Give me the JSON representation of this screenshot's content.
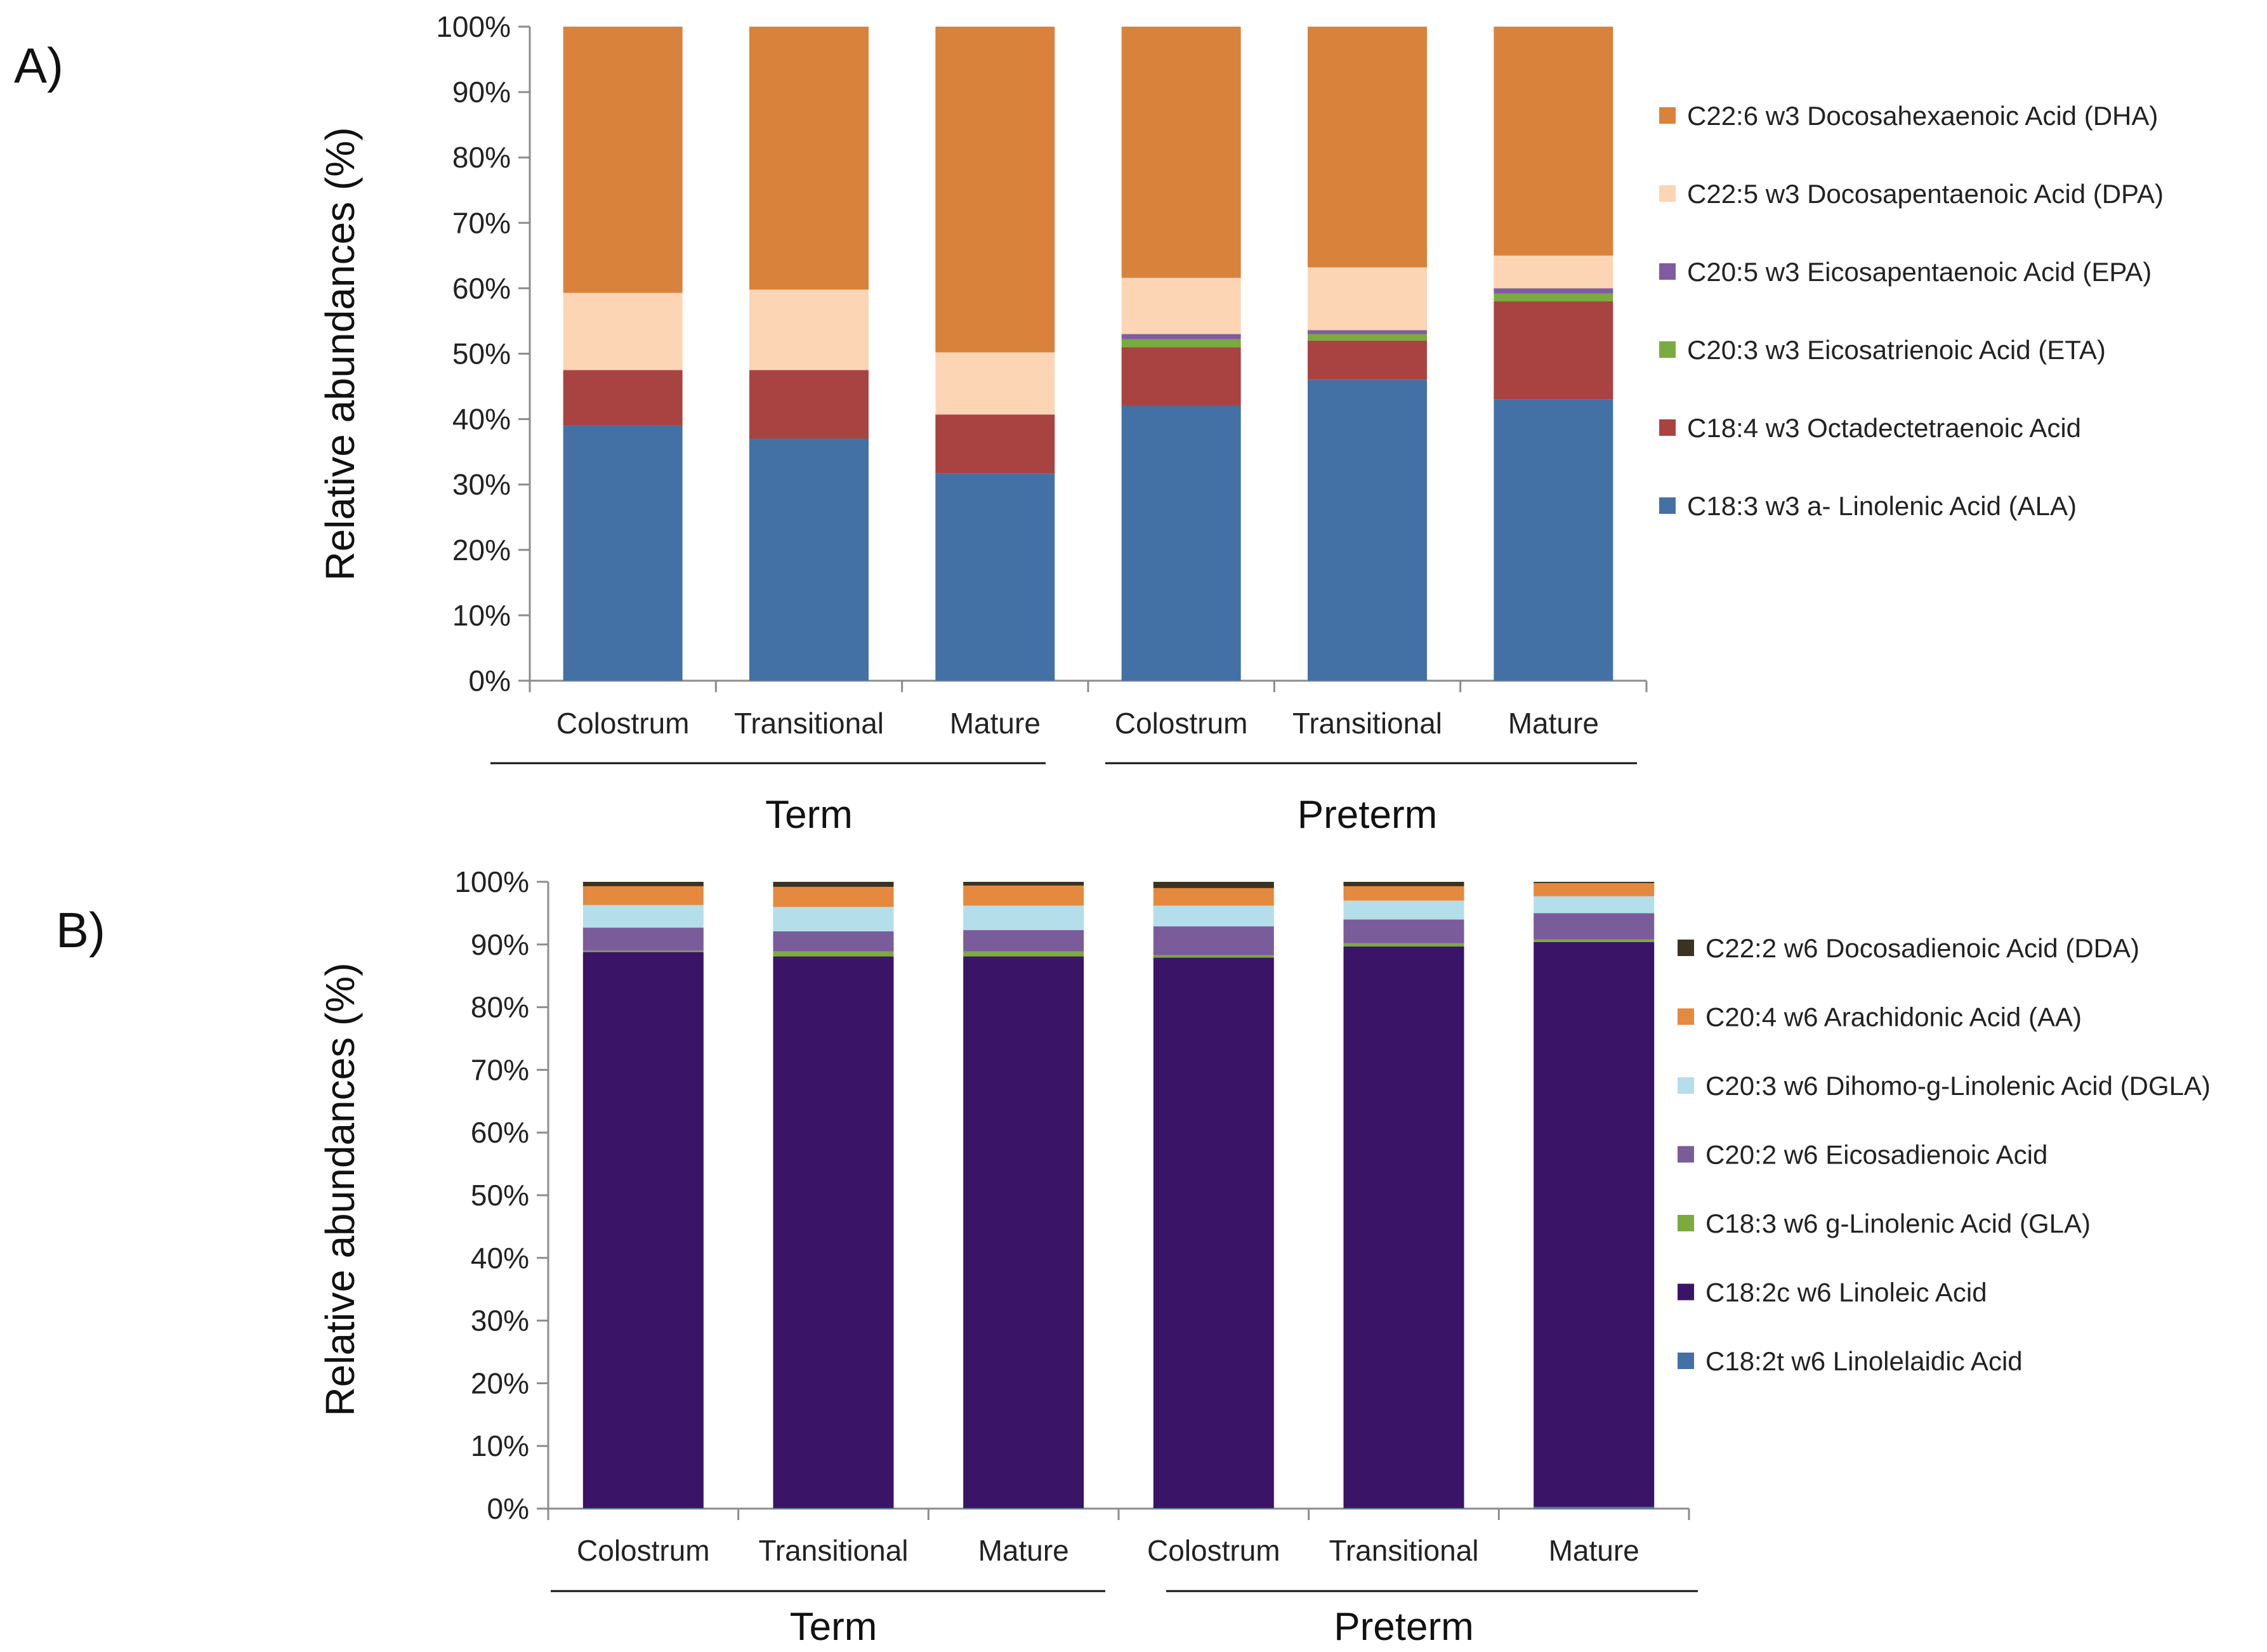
{
  "colors": {
    "dha": "#D9823B",
    "dpa": "#FCD5B5",
    "epa": "#7F5CA0",
    "eta": "#7BAA3F",
    "sda": "#A94342",
    "ala": "#4471A5",
    "dda": "#3A3321",
    "aa": "#E5893E",
    "dgla": "#B4DEEA",
    "eda": "#7A5C9A",
    "gla": "#7BAA3F",
    "la": "#3A1466",
    "lea": "#4471A5",
    "axis": "#8C8C8C"
  },
  "chart_data": [
    {
      "panel": "A)",
      "type": "bar",
      "stacked": true,
      "ylabel": "Relative abundances (%)",
      "ylim": [
        0,
        100
      ],
      "yticks": [
        "0%",
        "10%",
        "20%",
        "30%",
        "40%",
        "50%",
        "60%",
        "70%",
        "80%",
        "90%",
        "100%"
      ],
      "categories": [
        "Colostrum",
        "Transitional",
        "Mature",
        "Colostrum",
        "Transitional",
        "Mature"
      ],
      "groups": [
        {
          "label": "Term",
          "categories": [
            0,
            1,
            2
          ]
        },
        {
          "label": "Preterm",
          "categories": [
            3,
            4,
            5
          ]
        }
      ],
      "series": [
        {
          "name": "C18:3 w3 a- Linolenic Acid (ALA)",
          "color_key": "ala",
          "values": [
            39,
            37,
            31.7,
            42,
            46,
            43
          ]
        },
        {
          "name": "C18:4  w3 Octadectetraenoic Acid",
          "color_key": "sda",
          "values": [
            8.5,
            10.5,
            9,
            9,
            6,
            15
          ]
        },
        {
          "name": "C20:3 w3 Eicosatrienoic Acid (ETA)",
          "color_key": "eta",
          "values": [
            0,
            0,
            0,
            1.2,
            1,
            1.2
          ]
        },
        {
          "name": "C20:5 w3 Eicosapentaenoic Acid (EPA)",
          "color_key": "epa",
          "values": [
            0,
            0,
            0,
            0.8,
            0.6,
            0.8
          ]
        },
        {
          "name": "C22:5 w3 Docosapentaenoic Acid (DPA)",
          "color_key": "dpa",
          "values": [
            11.8,
            12.3,
            9.5,
            8.6,
            9.6,
            5
          ]
        },
        {
          "name": "C22:6 w3 Docosahexaenoic Acid (DHA)",
          "color_key": "dha",
          "values": [
            40.7,
            40.2,
            49.8,
            38.4,
            36.8,
            35
          ]
        }
      ]
    },
    {
      "panel": "B)",
      "type": "bar",
      "stacked": true,
      "ylabel": "Relative abundances (%)",
      "ylim": [
        0,
        100
      ],
      "yticks": [
        "0%",
        "10%",
        "20%",
        "30%",
        "40%",
        "50%",
        "60%",
        "70%",
        "80%",
        "90%",
        "100%"
      ],
      "categories": [
        "Colostrum",
        "Transitional",
        "Mature",
        "Colostrum",
        "Transitional",
        "Mature"
      ],
      "groups": [
        {
          "label": "Term",
          "categories": [
            0,
            1,
            2
          ]
        },
        {
          "label": "Preterm",
          "categories": [
            3,
            4,
            5
          ]
        }
      ],
      "series": [
        {
          "name": "C18:2t w6 Linolelaidic Acid",
          "color_key": "lea",
          "values": [
            0.1,
            0.1,
            0.1,
            0.1,
            0.1,
            0.3
          ]
        },
        {
          "name": "C18:2c w6 Linoleic Acid",
          "color_key": "la",
          "values": [
            88.7,
            88,
            88,
            87.8,
            89.6,
            90.1
          ]
        },
        {
          "name": "C18:3 w6 g-Linolenic Acid (GLA)",
          "color_key": "gla",
          "values": [
            0.2,
            0.8,
            0.8,
            0.4,
            0.5,
            0.4
          ]
        },
        {
          "name": "C20:2 w6 Eicosadienoic Acid",
          "color_key": "eda",
          "values": [
            3.7,
            3.2,
            3.4,
            4.6,
            3.8,
            4.2
          ]
        },
        {
          "name": "C20:3 w6 Dihomo-g-Linolenic Acid (DGLA)",
          "color_key": "dgla",
          "values": [
            3.6,
            3.9,
            3.9,
            3.3,
            3,
            2.7
          ]
        },
        {
          "name": "C20:4 w6 Arachidonic Acid (AA)",
          "color_key": "aa",
          "values": [
            3,
            3.2,
            3.2,
            2.8,
            2.3,
            2.1
          ]
        },
        {
          "name": "C22:2 w6 Docosadienoic Acid (DDA)",
          "color_key": "dda",
          "values": [
            0.7,
            0.8,
            0.6,
            1,
            0.7,
            0.2
          ]
        }
      ]
    }
  ]
}
